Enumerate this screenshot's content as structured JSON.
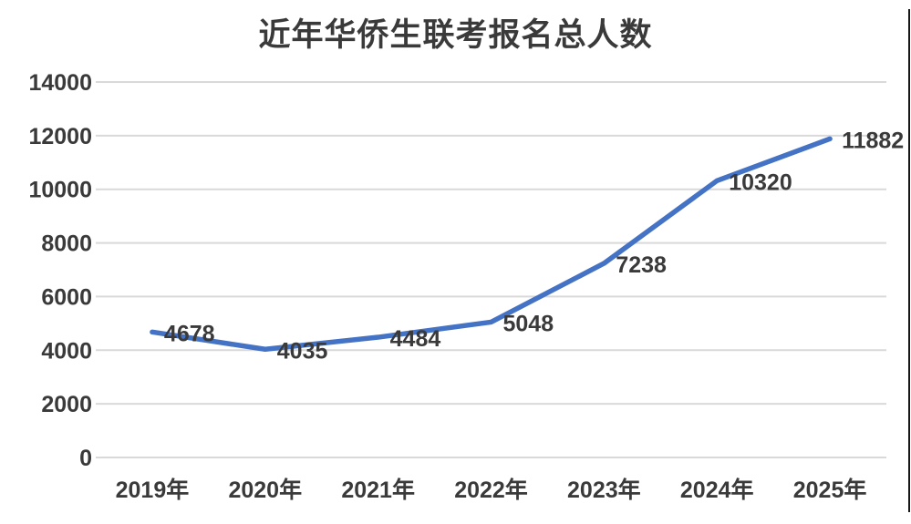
{
  "page": {
    "background": "#ffffff"
  },
  "chart_data": {
    "type": "line",
    "title": "近年华侨生联考报名总人数",
    "categories": [
      "2019年",
      "2020年",
      "2021年",
      "2022年",
      "2023年",
      "2024年",
      "2025年"
    ],
    "values": [
      4678,
      4035,
      4484,
      5048,
      7238,
      10320,
      11882
    ],
    "data_labels": [
      "4678",
      "4035",
      "4484",
      "5048",
      "7238",
      "10320",
      "11882"
    ],
    "y_ticks": [
      0,
      2000,
      4000,
      6000,
      8000,
      10000,
      12000,
      14000
    ],
    "ylim": [
      0,
      14000
    ],
    "xlabel": "",
    "ylabel": "",
    "grid": "horizontal",
    "legend": "none",
    "colors": {
      "line": "#4472C4",
      "grid": "#D9D9D9",
      "text": "#3A3A3A",
      "edge_line": "#171717"
    }
  }
}
